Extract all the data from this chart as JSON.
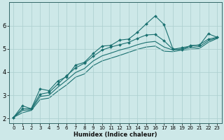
{
  "title": "",
  "xlabel": "Humidex (Indice chaleur)",
  "bg_color": "#cde8e8",
  "grid_color": "#aacece",
  "line_color": "#1a7070",
  "xlim": [
    -0.5,
    23.5
  ],
  "ylim": [
    1.8,
    7.0
  ],
  "xticks": [
    0,
    1,
    2,
    3,
    4,
    5,
    6,
    7,
    8,
    9,
    10,
    11,
    12,
    13,
    14,
    15,
    16,
    17,
    18,
    19,
    20,
    21,
    22,
    23
  ],
  "yticks": [
    2,
    3,
    4,
    5,
    6
  ],
  "lines": [
    {
      "y": [
        2.05,
        2.55,
        2.42,
        3.28,
        3.2,
        3.62,
        3.8,
        4.3,
        4.42,
        4.8,
        5.12,
        5.15,
        5.38,
        5.42,
        5.72,
        6.08,
        6.42,
        6.05,
        5.0,
        4.95,
        5.15,
        5.15,
        5.65,
        5.5
      ],
      "marker": "D",
      "markersize": 2.0,
      "linewidth": 0.8,
      "zorder": 4
    },
    {
      "y": [
        2.05,
        2.42,
        2.42,
        3.05,
        3.12,
        3.48,
        3.85,
        4.18,
        4.38,
        4.68,
        4.95,
        5.08,
        5.18,
        5.28,
        5.45,
        5.6,
        5.62,
        5.35,
        4.98,
        5.05,
        5.12,
        5.18,
        5.42,
        5.5
      ],
      "marker": "D",
      "markersize": 2.0,
      "linewidth": 0.8,
      "zorder": 3
    },
    {
      "y": [
        2.05,
        2.35,
        2.38,
        2.95,
        3.0,
        3.35,
        3.65,
        3.98,
        4.15,
        4.48,
        4.7,
        4.82,
        4.95,
        5.05,
        5.18,
        5.28,
        5.32,
        5.08,
        4.95,
        5.0,
        5.05,
        5.1,
        5.35,
        5.48
      ],
      "marker": null,
      "markersize": 0,
      "linewidth": 0.8,
      "zorder": 2
    },
    {
      "y": [
        2.05,
        2.25,
        2.35,
        2.82,
        2.88,
        3.18,
        3.45,
        3.78,
        3.92,
        4.28,
        4.48,
        4.6,
        4.72,
        4.85,
        4.98,
        5.08,
        5.12,
        4.9,
        4.88,
        4.95,
        4.98,
        5.02,
        5.28,
        5.45
      ],
      "marker": null,
      "markersize": 0,
      "linewidth": 0.8,
      "zorder": 1
    }
  ],
  "xlabel_fontsize": 6,
  "tick_fontsize": 5,
  "xlabel_fontweight": "bold"
}
